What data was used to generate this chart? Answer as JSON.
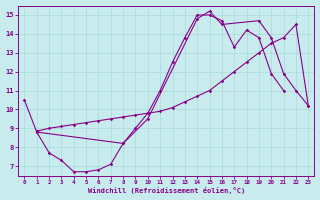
{
  "xlabel": "Windchill (Refroidissement éolien,°C)",
  "background_color": "#c8ecee",
  "grid_color": "#a8d8dc",
  "line_color": "#880088",
  "xlim": [
    -0.5,
    23.5
  ],
  "ylim": [
    6.5,
    15.5
  ],
  "xticks": [
    0,
    1,
    2,
    3,
    4,
    5,
    6,
    7,
    8,
    9,
    10,
    11,
    12,
    13,
    14,
    15,
    16,
    17,
    18,
    19,
    20,
    21,
    22,
    23
  ],
  "yticks": [
    7,
    8,
    9,
    10,
    11,
    12,
    13,
    14,
    15
  ],
  "line1_x": [
    0,
    1,
    2,
    3,
    4,
    5,
    6,
    7,
    8,
    9,
    10,
    11,
    12,
    13,
    14,
    15,
    16,
    17,
    18,
    19,
    20,
    21
  ],
  "line1_y": [
    10.5,
    8.8,
    7.7,
    7.3,
    6.7,
    6.7,
    6.8,
    7.1,
    8.2,
    9.0,
    9.8,
    11.0,
    12.5,
    13.8,
    15.0,
    15.0,
    14.7,
    13.3,
    14.2,
    13.8,
    11.9,
    11.0
  ],
  "line2_x": [
    1,
    2,
    3,
    4,
    5,
    6,
    7,
    8,
    9,
    10,
    11,
    12,
    13,
    14,
    15,
    16,
    17,
    18,
    19,
    20,
    21,
    22,
    23
  ],
  "line2_y": [
    8.85,
    9.0,
    9.1,
    9.2,
    9.3,
    9.4,
    9.5,
    9.6,
    9.7,
    9.8,
    9.9,
    10.1,
    10.4,
    10.7,
    11.0,
    11.5,
    12.0,
    12.5,
    13.0,
    13.5,
    13.8,
    14.5,
    10.2
  ],
  "line3_x": [
    1,
    8,
    10,
    14,
    15,
    16,
    19,
    20,
    21,
    22,
    23
  ],
  "line3_y": [
    8.8,
    8.2,
    9.5,
    14.8,
    15.2,
    14.5,
    14.7,
    13.8,
    11.9,
    11.0,
    10.2
  ]
}
